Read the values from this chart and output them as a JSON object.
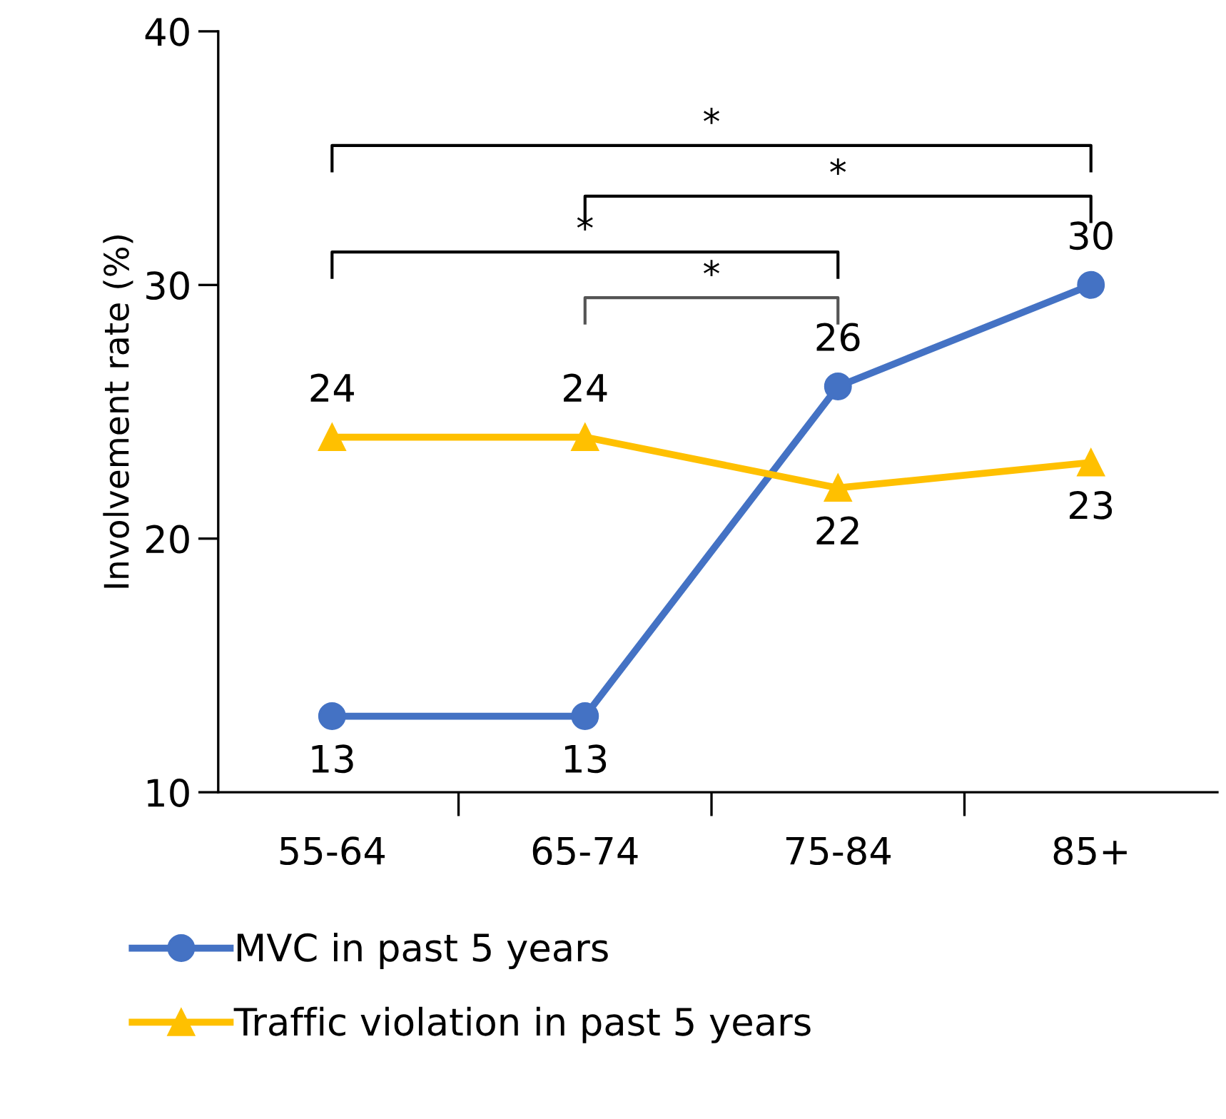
{
  "chart_data": {
    "type": "line",
    "ylabel": "Involvement rate (%)",
    "categories": [
      "55-64",
      "65-74",
      "75-84",
      "85+"
    ],
    "series": [
      {
        "name": "MVC in past 5 years",
        "color": "#4472c4",
        "marker": "circle",
        "values": [
          13,
          13,
          26,
          30
        ]
      },
      {
        "name": "Traffic violation in past 5 years",
        "color": "#ffc000",
        "marker": "triangle",
        "values": [
          24,
          24,
          22,
          23
        ]
      }
    ],
    "ylim": [
      10,
      40
    ],
    "yticks": [
      10,
      20,
      30,
      40
    ],
    "grid": false,
    "legend": "bottom",
    "data_labels": true,
    "annotations": [
      "*",
      "*",
      "*",
      "*"
    ]
  }
}
